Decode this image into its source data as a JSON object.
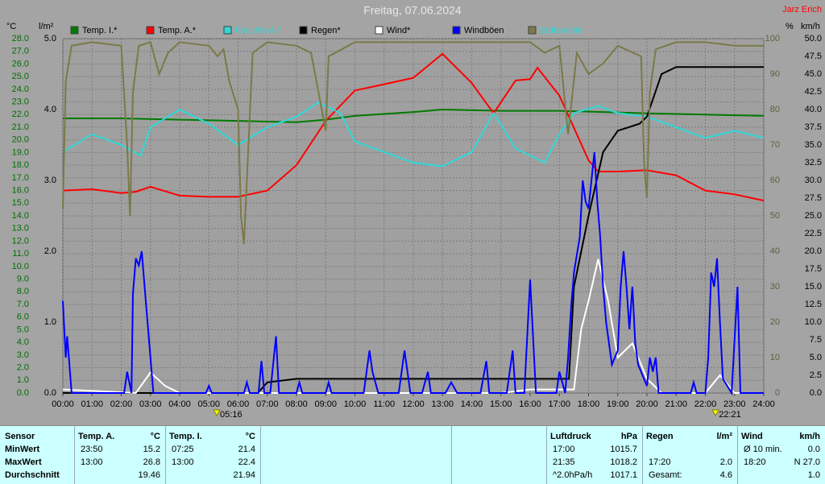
{
  "chart_data": {
    "type": "line",
    "title": "Freitag, 07.06.2024",
    "author": "Jarz Erich",
    "axis_units": {
      "y": "°C",
      "y2": "l/m²",
      "y3": "%",
      "y4": "km/h"
    },
    "annotations": [
      {
        "x": 5.27,
        "label": "05:16"
      },
      {
        "x": 22.35,
        "label": "22:21"
      }
    ],
    "grid": true,
    "xlim": [
      0,
      24
    ],
    "xticks": [
      {
        "value": 0,
        "label": "00:00"
      },
      {
        "value": 1,
        "label": "01:00"
      },
      {
        "value": 2,
        "label": "02:00"
      },
      {
        "value": 3,
        "label": "03:00"
      },
      {
        "value": 4,
        "label": "04:00"
      },
      {
        "value": 5,
        "label": "05:00"
      },
      {
        "value": 6,
        "label": "06:00"
      },
      {
        "value": 7,
        "label": "07:00"
      },
      {
        "value": 8,
        "label": "08:00"
      },
      {
        "value": 9,
        "label": "09:00"
      },
      {
        "value": 10,
        "label": "10:00"
      },
      {
        "value": 11,
        "label": "11:00"
      },
      {
        "value": 12,
        "label": "12:00"
      },
      {
        "value": 13,
        "label": "13:00"
      },
      {
        "value": 14,
        "label": "14:00"
      },
      {
        "value": 15,
        "label": "15:00"
      },
      {
        "value": 16,
        "label": "16:00"
      },
      {
        "value": 17,
        "label": "17:00"
      },
      {
        "value": 18,
        "label": "18:00"
      },
      {
        "value": 19,
        "label": "19:00"
      },
      {
        "value": 20,
        "label": "20:00"
      },
      {
        "value": 21,
        "label": "21:00"
      },
      {
        "value": 22,
        "label": "22:00"
      },
      {
        "value": 23,
        "label": "23:00"
      },
      {
        "value": 24,
        "label": "24:00"
      }
    ],
    "ylim": [
      0,
      28
    ],
    "yticks": [
      {
        "value": 0,
        "label": "0.0"
      },
      {
        "value": 1,
        "label": "1.0"
      },
      {
        "value": 2,
        "label": "2.0"
      },
      {
        "value": 3,
        "label": "3.0"
      },
      {
        "value": 4,
        "label": "4.0"
      },
      {
        "value": 5,
        "label": "5.0"
      },
      {
        "value": 6,
        "label": "6.0"
      },
      {
        "value": 7,
        "label": "7.0"
      },
      {
        "value": 8,
        "label": "8.0"
      },
      {
        "value": 9,
        "label": "9.0"
      },
      {
        "value": 10,
        "label": "10.0"
      },
      {
        "value": 11,
        "label": "11.0"
      },
      {
        "value": 12,
        "label": "12.0"
      },
      {
        "value": 13,
        "label": "13.0"
      },
      {
        "value": 14,
        "label": "14.0"
      },
      {
        "value": 15,
        "label": "15.0"
      },
      {
        "value": 16,
        "label": "16.0"
      },
      {
        "value": 17,
        "label": "17.0"
      },
      {
        "value": 18,
        "label": "18.0"
      },
      {
        "value": 19,
        "label": "19.0"
      },
      {
        "value": 20,
        "label": "20.0"
      },
      {
        "value": 21,
        "label": "21.0"
      },
      {
        "value": 22,
        "label": "22.0"
      },
      {
        "value": 23,
        "label": "23.0"
      },
      {
        "value": 24,
        "label": "24.0"
      },
      {
        "value": 25,
        "label": "25.0"
      },
      {
        "value": 26,
        "label": "26.0"
      },
      {
        "value": 27,
        "label": "27.0"
      },
      {
        "value": 28,
        "label": "28.0"
      }
    ],
    "y2lim": [
      0,
      5
    ],
    "y2ticks": [
      {
        "value": 0,
        "label": "0.0"
      },
      {
        "value": 1,
        "label": "1.0"
      },
      {
        "value": 2,
        "label": "2.0"
      },
      {
        "value": 3,
        "label": "3.0"
      },
      {
        "value": 4,
        "label": "4.0"
      },
      {
        "value": 5,
        "label": "5.0"
      }
    ],
    "y3lim": [
      0,
      100
    ],
    "y3ticks": [
      0,
      10,
      20,
      30,
      40,
      50,
      60,
      70,
      80,
      90,
      100
    ],
    "y4lim": [
      0,
      50
    ],
    "y4ticks": [
      {
        "value": 0,
        "label": "0.0"
      },
      {
        "value": 2.5,
        "label": "2.5"
      },
      {
        "value": 5,
        "label": "5.0"
      },
      {
        "value": 7.5,
        "label": "7.5"
      },
      {
        "value": 10,
        "label": "10.0"
      },
      {
        "value": 12.5,
        "label": "12.5"
      },
      {
        "value": 15,
        "label": "15.0"
      },
      {
        "value": 17.5,
        "label": "17.5"
      },
      {
        "value": 20,
        "label": "20.0"
      },
      {
        "value": 22.5,
        "label": "22.5"
      },
      {
        "value": 25,
        "label": "25.0"
      },
      {
        "value": 27.5,
        "label": "27.5"
      },
      {
        "value": 30,
        "label": "30.0"
      },
      {
        "value": 32.5,
        "label": "32.5"
      },
      {
        "value": 35,
        "label": "35.0"
      },
      {
        "value": 37.5,
        "label": "37.5"
      },
      {
        "value": 40,
        "label": "40.0"
      },
      {
        "value": 42.5,
        "label": "42.5"
      },
      {
        "value": 45,
        "label": "45.0"
      },
      {
        "value": 47.5,
        "label": "47.5"
      },
      {
        "value": 50,
        "label": "50.0"
      }
    ],
    "axis_colors": {
      "y": "#007000",
      "y2": "#000000",
      "y3": "#606040",
      "y4": "#000000"
    },
    "series": [
      {
        "name": "Temp. I.*",
        "color": "#007a00",
        "label_color": "#000000",
        "axis": "y",
        "x": [
          0,
          2,
          4,
          6,
          8,
          9,
          10,
          12,
          13,
          15,
          17,
          20,
          22,
          24
        ],
        "values": [
          21.7,
          21.7,
          21.6,
          21.5,
          21.4,
          21.6,
          21.9,
          22.2,
          22.4,
          22.3,
          22.3,
          22.1,
          22.0,
          21.9
        ]
      },
      {
        "name": "Temp. A.*",
        "color": "#ff0000",
        "label_color": "#000000",
        "axis": "y",
        "x": [
          0,
          1,
          2,
          2.5,
          3,
          4,
          5,
          6,
          7,
          8,
          9,
          10,
          11,
          12,
          13,
          14,
          14.75,
          15.5,
          16,
          16.25,
          17,
          18,
          18.33,
          19,
          20,
          21,
          22,
          23,
          24
        ],
        "values": [
          16.0,
          16.1,
          15.8,
          15.9,
          16.3,
          15.6,
          15.5,
          15.5,
          16.0,
          18.0,
          21.5,
          23.9,
          24.4,
          24.9,
          26.8,
          24.5,
          22.1,
          24.7,
          24.8,
          25.7,
          23.5,
          18.4,
          17.5,
          17.5,
          17.6,
          17.2,
          16.0,
          15.7,
          15.2
        ]
      },
      {
        "name": "Feuchte A.*",
        "color": "#30d8d8",
        "label_color": "#30d8d8",
        "axis": "y3",
        "x": [
          0,
          1,
          2,
          2.67,
          3,
          4,
          5,
          6,
          7,
          8,
          8.75,
          9.5,
          10,
          11,
          12,
          13,
          14,
          14.75,
          15.5,
          16.5,
          17,
          17.5,
          18.33,
          19,
          20,
          21,
          22,
          23,
          24
        ],
        "values": [
          68,
          73,
          70,
          67,
          75,
          80,
          76,
          70,
          75,
          78,
          82,
          79,
          71,
          68,
          65,
          64,
          68,
          79,
          69,
          65,
          73,
          79,
          81,
          79,
          78,
          75,
          72,
          74,
          72
        ]
      },
      {
        "name": "Regen*",
        "color": "#000000",
        "label_color": "#000000",
        "axis": "y2",
        "x": [
          0,
          6.67,
          7,
          8,
          17.33,
          17.5,
          18,
          18.5,
          19,
          19.75,
          20,
          20.5,
          21,
          24
        ],
        "values": [
          0,
          0,
          0.15,
          0.2,
          0.2,
          1.5,
          2.5,
          3.4,
          3.7,
          3.8,
          3.9,
          4.5,
          4.6,
          4.6
        ]
      },
      {
        "name": "Wind*",
        "color": "#ffffff",
        "label_color": "#000000",
        "axis": "y4",
        "x": [
          0,
          2.5,
          3,
          3.5,
          4,
          15,
          16,
          17.5,
          17.75,
          18,
          18.33,
          18.67,
          19,
          19.5,
          20,
          20.5,
          22,
          22.5,
          23,
          24
        ],
        "values": [
          0.5,
          0,
          2.9,
          1,
          0,
          0,
          0.5,
          0.5,
          9,
          13,
          18.9,
          13,
          5,
          7,
          2,
          0,
          0,
          2.5,
          0,
          0
        ]
      },
      {
        "name": "Windböen",
        "color": "#0000ff",
        "label_color": "#000000",
        "axis": "y4",
        "x": [
          0,
          0.1,
          0.15,
          0.3,
          2.1,
          2.2,
          2.35,
          2.4,
          2.5,
          2.6,
          2.7,
          2.8,
          2.9,
          3.1,
          4.9,
          5.0,
          5.1,
          6.2,
          6.3,
          6.4,
          6.7,
          6.8,
          6.9,
          7.1,
          7.3,
          7.4,
          8.0,
          8.1,
          8.2,
          9.0,
          9.1,
          9.2,
          10.3,
          10.5,
          10.6,
          10.8,
          11.5,
          11.7,
          11.9,
          12.3,
          12.5,
          12.6,
          13.1,
          13.3,
          13.5,
          14.3,
          14.5,
          14.6,
          15.2,
          15.4,
          15.5,
          15.8,
          16.0,
          16.1,
          16.2,
          16.9,
          17.0,
          17.2,
          17.3,
          17.4,
          17.5,
          17.7,
          17.8,
          17.9,
          18.0,
          18.1,
          18.2,
          18.3,
          18.4,
          18.5,
          18.6,
          18.7,
          18.8,
          19.0,
          19.1,
          19.2,
          19.3,
          19.4,
          19.5,
          19.6,
          19.7,
          20.0,
          20.1,
          20.2,
          20.3,
          20.4,
          21.5,
          21.6,
          21.7,
          22.0,
          22.1,
          22.2,
          22.3,
          22.4,
          22.5,
          22.6,
          22.9,
          23.1,
          23.2,
          24
        ],
        "values": [
          13,
          5,
          8,
          0,
          0,
          3,
          0,
          14,
          19,
          18,
          20,
          15,
          10,
          0,
          0,
          1,
          0,
          0,
          1.5,
          0,
          0,
          4.5,
          0,
          0,
          8,
          0,
          0,
          1.5,
          0,
          0,
          1.5,
          0,
          0,
          6,
          3,
          0,
          0,
          6,
          0,
          0,
          3,
          0,
          0,
          1.5,
          0,
          0,
          4.5,
          0,
          0,
          6,
          0,
          0,
          16,
          8,
          0,
          0,
          3,
          0,
          5,
          12,
          17,
          22,
          30,
          27,
          26,
          30,
          34,
          27,
          22,
          15,
          10,
          7,
          4,
          6,
          15,
          20,
          15,
          9,
          15,
          7,
          4,
          1,
          5,
          3,
          5,
          0,
          0,
          1.5,
          0,
          0,
          5,
          17,
          15,
          19,
          10,
          2,
          0,
          15,
          0,
          0
        ]
      },
      {
        "name": "Erdfeuchte",
        "color": "#7a7a48",
        "label_color": "#30d8d8",
        "axis": "y3",
        "x": [
          0,
          0.1,
          0.3,
          1,
          2,
          2.2,
          2.3,
          2.4,
          2.6,
          3,
          3.3,
          3.6,
          4,
          5,
          5.3,
          5.5,
          5.7,
          6,
          6.1,
          6.2,
          6.3,
          6.5,
          7,
          8,
          8.5,
          9,
          9.1,
          10,
          12,
          14,
          16,
          16.5,
          17,
          17.3,
          17.6,
          18,
          18.5,
          19,
          19.8,
          19.9,
          20.0,
          20.1,
          20.3,
          21,
          22,
          23,
          24
        ],
        "values": [
          52,
          88,
          98,
          99,
          98,
          70,
          50,
          85,
          98,
          99,
          90,
          96,
          99,
          98,
          95,
          97,
          88,
          80,
          50,
          42,
          60,
          96,
          99,
          98,
          96,
          74,
          95,
          99,
          99,
          99,
          99,
          96,
          98,
          73,
          96,
          90,
          93,
          98,
          95,
          65,
          55,
          85,
          97,
          99,
          99,
          98,
          98
        ]
      }
    ],
    "table": {
      "sensor_header": "Sensor",
      "row_labels": [
        "MinWert",
        "MaxWert",
        "Durchschnitt"
      ],
      "groups": [
        {
          "name": "Temp. A.",
          "unit": "°C",
          "rows": [
            [
              "23:50",
              "15.2"
            ],
            [
              "13:00",
              "26.8"
            ],
            [
              null,
              "19.46"
            ]
          ]
        },
        {
          "name": "Temp. I.",
          "unit": "°C",
          "rows": [
            [
              "07:25",
              "21.4"
            ],
            [
              "13:00",
              "22.4"
            ],
            [
              null,
              "21.94"
            ]
          ]
        },
        {
          "name": "Luftdruck",
          "unit": "hPa",
          "rows": [
            [
              "17:00",
              "1015.7"
            ],
            [
              "21:35",
              "1018.2"
            ],
            [
              "^2.0hPa/h",
              "1017.1"
            ]
          ]
        },
        {
          "name": "Regen",
          "unit": "l/m²",
          "rows": [
            [
              null,
              null
            ],
            [
              "17:20",
              "2.0"
            ],
            [
              "Gesamt:",
              "4.6"
            ]
          ]
        },
        {
          "name": "Wind",
          "unit": "km/h",
          "rows": [
            [
              "Ø 10 min.",
              "0.0"
            ],
            [
              "18:20",
              "N 27.0"
            ],
            [
              null,
              "1.0"
            ]
          ]
        }
      ]
    }
  }
}
